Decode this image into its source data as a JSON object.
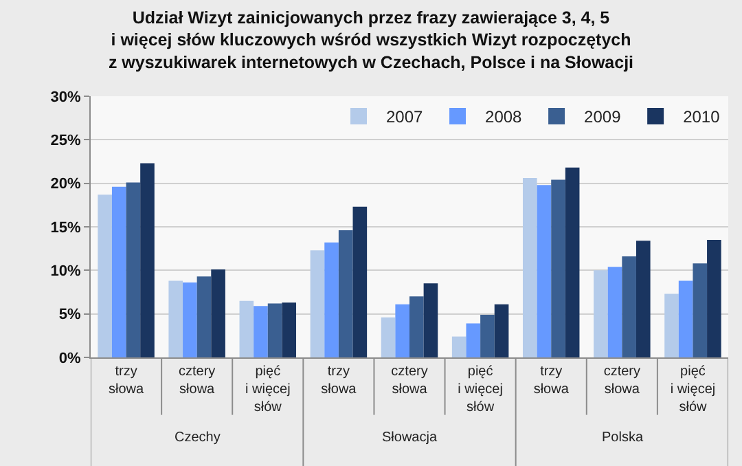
{
  "chart_data": {
    "type": "bar",
    "title": "Udział Wizyt zainicjowanych przez frazy zawierające 3, 4, 5\ni więcej słów kluczowych wśród wszystkich Wizyt rozpoczętych\nz wyszukiwarek internetowych w Czechach, Polsce i na Słowacji",
    "categories": [
      "trzy słowa",
      "cztery słowa",
      "pięć i więcej słów",
      "trzy słowa",
      "cztery słowa",
      "pięć i więcej słów",
      "trzy słowa",
      "cztery słowa",
      "pięć i więcej słów"
    ],
    "series": [
      {
        "name": "2007",
        "color": "#b4cbea",
        "values": [
          18.7,
          8.8,
          6.5,
          12.3,
          4.6,
          2.4,
          20.6,
          10.0,
          7.3
        ]
      },
      {
        "name": "2008",
        "color": "#6699ff",
        "values": [
          19.6,
          8.6,
          5.9,
          13.2,
          6.1,
          3.9,
          19.8,
          10.4,
          8.8
        ]
      },
      {
        "name": "2009",
        "color": "#3a5f91",
        "values": [
          20.1,
          9.3,
          6.2,
          14.6,
          7.0,
          4.9,
          20.4,
          11.6,
          10.8
        ]
      },
      {
        "name": "2010",
        "color": "#1a3560",
        "values": [
          22.3,
          10.1,
          6.3,
          17.3,
          8.5,
          6.1,
          21.8,
          13.4,
          13.5
        ]
      }
    ],
    "annotations": [
      "Czechy",
      "Słowacja",
      "Polska"
    ],
    "ylim": [
      0,
      30
    ],
    "yticks": [
      {
        "value": 0,
        "label": "0%"
      },
      {
        "value": 5,
        "label": "5%"
      },
      {
        "value": 10,
        "label": "10%"
      },
      {
        "value": 15,
        "label": "15%"
      },
      {
        "value": 20,
        "label": "20%"
      },
      {
        "value": 25,
        "label": "25%"
      },
      {
        "value": 30,
        "label": "30%"
      }
    ],
    "grid": "y",
    "legend": "top right"
  }
}
